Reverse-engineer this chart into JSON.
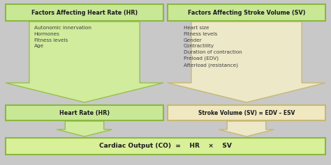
{
  "bg_color": "#c8c8c8",
  "green_box_fill": "#c8e896",
  "green_box_edge": "#8ab840",
  "tan_box_fill": "#f0e8c0",
  "tan_box_edge": "#c8b870",
  "green_arrow_fill": "#d0ec9c",
  "green_arrow_edge": "#98c048",
  "tan_arrow_fill": "#ede8c8",
  "tan_arrow_edge": "#c8b870",
  "bottom_box_fill": "#d8f098",
  "bottom_box_edge": "#8ab840",
  "left_title": "Factors Affecting Heart Rate (HR)",
  "right_title": "Factors Affecting Stroke Volume (SV)",
  "left_items": [
    "Autonomic innervation",
    "Hormones",
    "Fitness levels",
    "Age"
  ],
  "right_items": [
    "Heart size",
    "Fitness levels",
    "Gender",
    "Contractility",
    "Duration of contraction",
    "Preload (EDV)",
    "Afterload (resistance)"
  ],
  "left_mid_label": "Heart Rate (HR)",
  "right_mid_label": "Stroke Volume (SV) = EDV – ESV",
  "bottom_label_parts": [
    "Cardiac Output (CO)  =",
    "HR",
    "×",
    "SV"
  ],
  "text_color": "#404040",
  "title_text_color": "#1a1a1a",
  "fig_width": 4.74,
  "fig_height": 2.37,
  "dpi": 100
}
